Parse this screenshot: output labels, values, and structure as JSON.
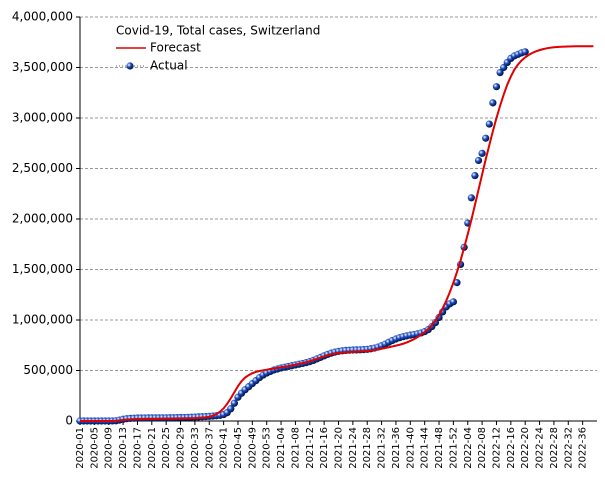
{
  "chart_data": {
    "type": "line",
    "legend_title": "Covid-19, Total cases, Switzerland",
    "legend": "upper left",
    "grid": true,
    "ylim": [
      0,
      4000000
    ],
    "yticks": [
      0,
      {
        "value": 500000,
        "label": "500,000"
      },
      {
        "value": 1000000,
        "label": "1,000,000"
      },
      {
        "value": 1500000,
        "label": "1,500,000"
      },
      {
        "value": 2000000,
        "label": "2,000,000"
      },
      {
        "value": 2500000,
        "label": "2,500,000"
      },
      {
        "value": 3000000,
        "label": "3,000,000"
      },
      {
        "value": 3500000,
        "label": "3,500,000"
      },
      {
        "value": 4000000,
        "label": "4,000,000"
      }
    ],
    "categories": [
      "2020-01",
      null,
      null,
      null,
      "2020-05",
      null,
      null,
      null,
      "2020-09",
      null,
      null,
      null,
      "2020-13",
      null,
      null,
      null,
      "2020-17",
      null,
      null,
      null,
      "2020-21",
      null,
      null,
      null,
      "2020-25",
      null,
      null,
      null,
      "2020-29",
      null,
      null,
      null,
      "2020-33",
      null,
      null,
      null,
      "2020-37",
      null,
      null,
      null,
      "2020-41",
      null,
      null,
      null,
      "2020-45",
      null,
      null,
      null,
      "2020-49",
      null,
      null,
      null,
      "2020-53",
      null,
      null,
      null,
      "2021-04",
      null,
      null,
      null,
      "2021-08",
      null,
      null,
      null,
      "2021-12",
      null,
      null,
      null,
      "2021-16",
      null,
      null,
      null,
      "2021-20",
      null,
      null,
      null,
      "2021-24",
      null,
      null,
      null,
      "2021-28",
      null,
      null,
      null,
      "2021-32",
      null,
      null,
      null,
      "2021-36",
      null,
      null,
      null,
      "2021-40",
      null,
      null,
      null,
      "2021-44",
      null,
      null,
      null,
      "2021-48",
      null,
      null,
      null,
      "2021-52",
      null,
      null,
      null,
      "2022-04",
      null,
      null,
      null,
      "2022-08",
      null,
      null,
      null,
      "2022-12",
      null,
      null,
      null,
      "2022-16",
      null,
      null,
      null,
      "2022-20",
      null,
      null,
      null,
      "2022-24",
      null,
      null,
      null,
      "2022-28",
      null,
      null,
      null,
      "2022-32",
      null,
      null,
      null,
      "2022-36",
      null,
      null,
      null
    ],
    "series": [
      {
        "name": "Forecast",
        "color": "#e00000",
        "style": "line",
        "values": [
          0,
          0,
          0,
          0,
          0,
          0,
          0,
          0,
          0,
          1000,
          3000,
          6000,
          10000,
          13000,
          15000,
          17000,
          18000,
          19000,
          20000,
          20500,
          21000,
          21500,
          22000,
          22500,
          23000,
          23500,
          24000,
          24500,
          25000,
          25500,
          26000,
          27000,
          28000,
          30000,
          33000,
          36000,
          42000,
          52000,
          68000,
          92000,
          125000,
          170000,
          225000,
          285000,
          345000,
          395000,
          430000,
          455000,
          473000,
          486000,
          495000,
          502000,
          508000,
          514000,
          520000,
          526000,
          532000,
          538000,
          544000,
          551000,
          558000,
          566000,
          574000,
          583000,
          593000,
          604000,
          616000,
          628000,
          640000,
          651000,
          660000,
          667000,
          672000,
          676000,
          679000,
          682000,
          684000,
          686000,
          688000,
          690000,
          693000,
          697000,
          702000,
          708000,
          715000,
          722000,
          730000,
          738000,
          746000,
          755000,
          765000,
          778000,
          793000,
          810000,
          830000,
          853000,
          880000,
          912000,
          950000,
          995000,
          1050000,
          1115000,
          1190000,
          1275000,
          1370000,
          1475000,
          1590000,
          1715000,
          1850000,
          1990000,
          2140000,
          2290000,
          2440000,
          2590000,
          2730000,
          2870000,
          3000000,
          3120000,
          3230000,
          3330000,
          3410000,
          3480000,
          3530000,
          3570000,
          3600000,
          3625000,
          3645000,
          3660000,
          3672000,
          3682000,
          3690000,
          3696000,
          3700000,
          3703000,
          3705000,
          3707000,
          3708000,
          3709000,
          3710000,
          3710000,
          3710000,
          3710000,
          3710000,
          3710000
        ]
      },
      {
        "name": "Actual",
        "color": "#1e50c8",
        "style": "marker",
        "values": [
          0,
          0,
          0,
          0,
          0,
          0,
          0,
          0,
          100,
          500,
          2000,
          9000,
          17000,
          23000,
          26000,
          28000,
          29500,
          30000,
          30500,
          30700,
          30900,
          31000,
          31100,
          31300,
          31600,
          32000,
          32800,
          33600,
          34500,
          35500,
          36500,
          37500,
          39000,
          40500,
          42000,
          44000,
          46500,
          49000,
          52000,
          56000,
          64000,
          83000,
          121000,
          176000,
          235000,
          275000,
          310000,
          340000,
          370000,
          400000,
          430000,
          455000,
          475000,
          490000,
          505000,
          515000,
          525000,
          533000,
          540000,
          547000,
          555000,
          562000,
          570000,
          578000,
          588000,
          600000,
          615000,
          630000,
          645000,
          660000,
          672000,
          682000,
          690000,
          695000,
          699000,
          701000,
          703000,
          704000,
          705000,
          707000,
          710000,
          715000,
          722000,
          732000,
          745000,
          762000,
          780000,
          797000,
          812000,
          825000,
          835000,
          843000,
          850000,
          856000,
          863000,
          872000,
          885000,
          905000,
          935000,
          975000,
          1025000,
          1080000,
          1130000,
          1160000,
          1180000,
          1370000,
          1550000,
          1720000,
          1960000,
          2210000,
          2430000,
          2580000,
          2650000,
          2800000,
          2940000,
          3150000,
          3310000,
          3450000,
          3500000,
          3550000,
          3590000,
          3615000,
          3630000,
          3645000,
          3655000,
          null,
          null,
          null,
          null,
          null,
          null,
          null,
          null,
          null,
          null,
          null,
          null,
          null,
          null,
          null,
          null,
          null,
          null,
          null
        ]
      }
    ]
  }
}
